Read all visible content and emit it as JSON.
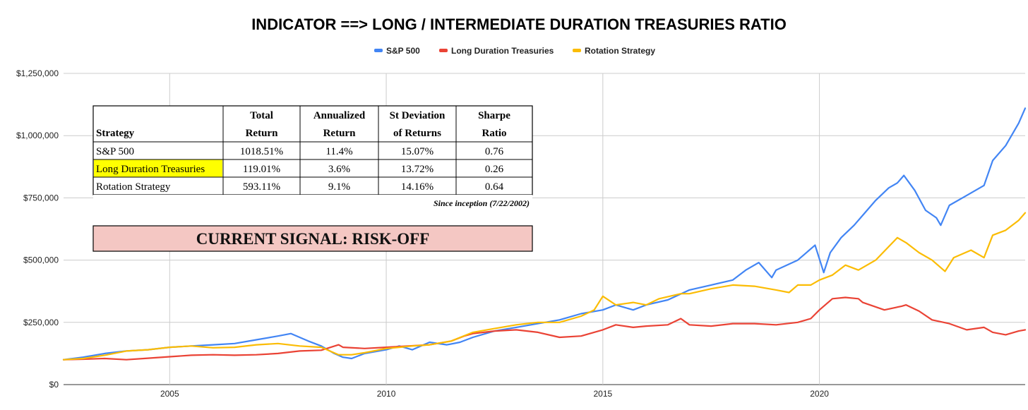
{
  "chart_data": {
    "type": "line",
    "title": "INDICATOR ==> LONG / INTERMEDIATE DURATION TREASURIES RATIO",
    "xlabel": "",
    "ylabel": "",
    "x_range": [
      2002.55,
      2024.75
    ],
    "x_ticks": [
      2005,
      2010,
      2015,
      2020
    ],
    "ylim": [
      0,
      1250000
    ],
    "y_ticks": [
      0,
      250000,
      500000,
      750000,
      1000000,
      1250000
    ],
    "y_tick_labels": [
      "$0",
      "$250,000",
      "$500,000",
      "$750,000",
      "$1,000,000",
      "$1,250,000"
    ],
    "grid": true,
    "legend_position": "top-center",
    "series": [
      {
        "name": "S&P 500",
        "color": "#4285f4",
        "x": [
          2002.55,
          2003.0,
          2003.5,
          2004.0,
          2004.5,
          2005.0,
          2005.5,
          2006.0,
          2006.5,
          2007.0,
          2007.5,
          2007.8,
          2008.2,
          2008.5,
          2008.8,
          2009.0,
          2009.2,
          2009.5,
          2010.0,
          2010.3,
          2010.6,
          2011.0,
          2011.4,
          2011.7,
          2012.0,
          2012.5,
          2013.0,
          2013.5,
          2014.0,
          2014.5,
          2015.0,
          2015.3,
          2015.7,
          2016.0,
          2016.5,
          2017.0,
          2017.5,
          2018.0,
          2018.3,
          2018.6,
          2018.9,
          2019.0,
          2019.5,
          2019.9,
          2020.1,
          2020.25,
          2020.5,
          2020.8,
          2021.0,
          2021.3,
          2021.6,
          2021.8,
          2021.95,
          2022.2,
          2022.45,
          2022.7,
          2022.8,
          2023.0,
          2023.4,
          2023.8,
          2024.0,
          2024.3,
          2024.6,
          2024.75
        ],
        "values": [
          100000,
          110000,
          125000,
          135000,
          140000,
          150000,
          155000,
          160000,
          165000,
          180000,
          195000,
          205000,
          175000,
          155000,
          125000,
          110000,
          105000,
          125000,
          140000,
          155000,
          140000,
          170000,
          160000,
          170000,
          190000,
          215000,
          230000,
          245000,
          260000,
          285000,
          300000,
          320000,
          300000,
          320000,
          340000,
          380000,
          400000,
          420000,
          460000,
          490000,
          430000,
          460000,
          500000,
          560000,
          450000,
          530000,
          590000,
          640000,
          680000,
          740000,
          790000,
          810000,
          840000,
          780000,
          700000,
          670000,
          640000,
          720000,
          760000,
          800000,
          900000,
          960000,
          1050000,
          1110000
        ]
      },
      {
        "name": "Long Duration Treasuries",
        "color": "#ea4335",
        "x": [
          2002.55,
          2003.0,
          2003.5,
          2004.0,
          2004.5,
          2005.0,
          2005.5,
          2006.0,
          2006.5,
          2007.0,
          2007.5,
          2008.0,
          2008.5,
          2008.9,
          2009.0,
          2009.5,
          2010.0,
          2010.5,
          2011.0,
          2011.5,
          2011.8,
          2012.0,
          2012.5,
          2013.0,
          2013.5,
          2014.0,
          2014.5,
          2015.0,
          2015.3,
          2015.7,
          2016.0,
          2016.5,
          2016.8,
          2017.0,
          2017.5,
          2018.0,
          2018.5,
          2019.0,
          2019.5,
          2019.8,
          2020.0,
          2020.3,
          2020.6,
          2020.9,
          2021.0,
          2021.5,
          2021.9,
          2022.0,
          2022.3,
          2022.6,
          2023.0,
          2023.4,
          2023.8,
          2024.0,
          2024.3,
          2024.6,
          2024.75
        ],
        "values": [
          100000,
          102000,
          105000,
          100000,
          106000,
          112000,
          118000,
          120000,
          118000,
          120000,
          125000,
          135000,
          138000,
          160000,
          150000,
          145000,
          150000,
          155000,
          160000,
          175000,
          195000,
          205000,
          215000,
          220000,
          210000,
          190000,
          195000,
          220000,
          240000,
          230000,
          235000,
          240000,
          265000,
          240000,
          235000,
          245000,
          245000,
          240000,
          250000,
          265000,
          300000,
          345000,
          350000,
          345000,
          330000,
          300000,
          315000,
          320000,
          295000,
          260000,
          245000,
          220000,
          230000,
          210000,
          200000,
          215000,
          220000
        ]
      },
      {
        "name": "Rotation Strategy",
        "color": "#fbbc04",
        "x": [
          2002.55,
          2003.0,
          2003.5,
          2004.0,
          2004.5,
          2005.0,
          2005.5,
          2006.0,
          2006.5,
          2007.0,
          2007.5,
          2008.0,
          2008.5,
          2008.9,
          2009.2,
          2009.5,
          2010.0,
          2010.3,
          2010.6,
          2011.0,
          2011.5,
          2012.0,
          2012.5,
          2013.0,
          2013.5,
          2014.0,
          2014.5,
          2014.8,
          2015.0,
          2015.3,
          2015.7,
          2016.0,
          2016.3,
          2016.8,
          2017.0,
          2017.5,
          2018.0,
          2018.5,
          2019.0,
          2019.3,
          2019.5,
          2019.8,
          2020.0,
          2020.3,
          2020.6,
          2020.9,
          2021.3,
          2021.8,
          2022.0,
          2022.3,
          2022.6,
          2022.9,
          2023.1,
          2023.5,
          2023.8,
          2024.0,
          2024.3,
          2024.6,
          2024.75
        ],
        "values": [
          100000,
          105000,
          118000,
          135000,
          140000,
          150000,
          155000,
          148000,
          150000,
          160000,
          165000,
          155000,
          150000,
          120000,
          120000,
          128000,
          145000,
          150000,
          155000,
          160000,
          175000,
          210000,
          225000,
          240000,
          250000,
          250000,
          275000,
          300000,
          355000,
          320000,
          330000,
          320000,
          345000,
          365000,
          365000,
          385000,
          400000,
          395000,
          380000,
          370000,
          400000,
          400000,
          420000,
          440000,
          480000,
          460000,
          500000,
          590000,
          570000,
          530000,
          500000,
          455000,
          510000,
          540000,
          510000,
          600000,
          620000,
          660000,
          690000
        ]
      }
    ]
  },
  "legend": {
    "items": [
      "S&P 500",
      "Long Duration Treasuries",
      "Rotation Strategy"
    ]
  },
  "table": {
    "headers": [
      [
        "",
        "Strategy"
      ],
      [
        "Total",
        "Return"
      ],
      [
        "Annualized",
        "Return"
      ],
      [
        "St Deviation",
        "of Returns"
      ],
      [
        "Sharpe",
        "Ratio"
      ]
    ],
    "rows": [
      {
        "strategy": "S&P 500",
        "total_return": "1018.51%",
        "annualized_return": "11.4%",
        "st_dev": "15.07%",
        "sharpe": "0.76"
      },
      {
        "strategy": "Long Duration Treasuries",
        "total_return": "119.01%",
        "annualized_return": "3.6%",
        "st_dev": "13.72%",
        "sharpe": "0.26",
        "highlight": "#ffff00"
      },
      {
        "strategy": "Rotation Strategy",
        "total_return": "593.11%",
        "annualized_return": "9.1%",
        "st_dev": "14.16%",
        "sharpe": "0.64"
      }
    ],
    "note": "Since inception (7/22/2002)"
  },
  "signal": {
    "text": "CURRENT SIGNAL: RISK-OFF",
    "background": "#f4c7c3"
  }
}
